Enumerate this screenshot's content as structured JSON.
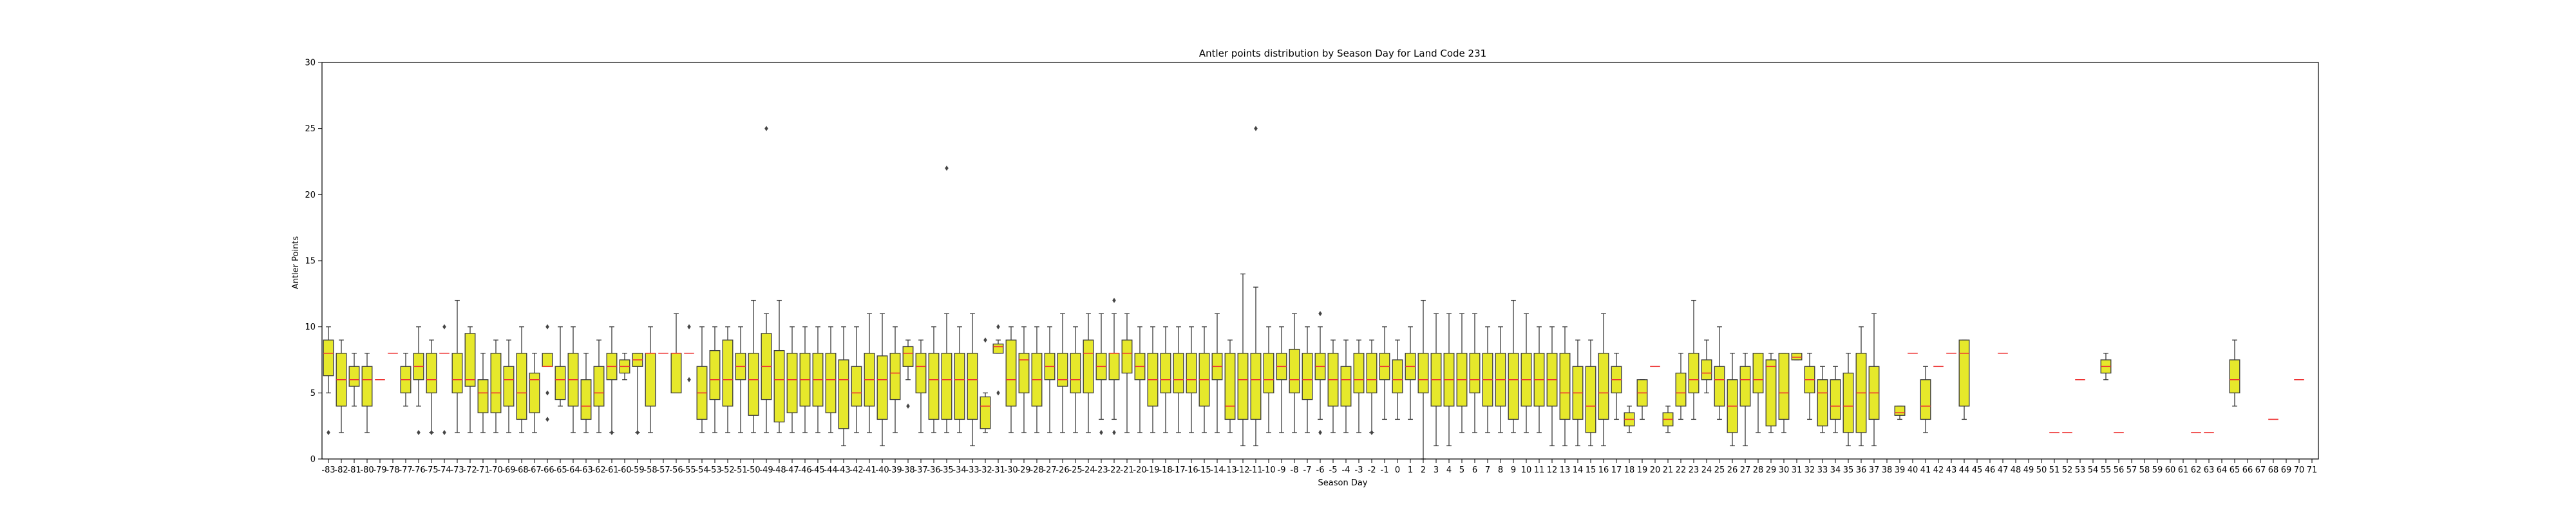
{
  "chart_data": {
    "type": "box",
    "title": "Antler points distribution by Season Day for Land Code 231",
    "xlabel": "Season Day",
    "ylabel": "Antler Points",
    "ylim": [
      0,
      30
    ],
    "yticks": [
      0,
      5,
      10,
      15,
      20,
      25,
      30
    ],
    "grid": false,
    "legend": "none",
    "colors": {
      "box_fill": "#e6e82b",
      "box_edge": "#3a3a3a",
      "median": "#ee3333",
      "whisker": "#3a3a3a",
      "outlier": "#444444"
    },
    "categories": [
      "-83",
      "-82",
      "-81",
      "-80",
      "-79",
      "-78",
      "-77",
      "-76",
      "-75",
      "-74",
      "-73",
      "-72",
      "-71",
      "-70",
      "-69",
      "-68",
      "-67",
      "-66",
      "-65",
      "-64",
      "-63",
      "-62",
      "-61",
      "-60",
      "-59",
      "-58",
      "-57",
      "-56",
      "-55",
      "-54",
      "-53",
      "-52",
      "-51",
      "-50",
      "-49",
      "-48",
      "-47",
      "-46",
      "-45",
      "-44",
      "-43",
      "-42",
      "-41",
      "-40",
      "-39",
      "-38",
      "-37",
      "-36",
      "-35",
      "-34",
      "-33",
      "-32",
      "-31",
      "-30",
      "-29",
      "-28",
      "-27",
      "-26",
      "-25",
      "-24",
      "-23",
      "-22",
      "-21",
      "-20",
      "-19",
      "-18",
      "-17",
      "-16",
      "-15",
      "-14",
      "-13",
      "-12",
      "-11",
      "-10",
      "-9",
      "-8",
      "-7",
      "-6",
      "-5",
      "-4",
      "-3",
      "-2",
      "-1",
      "0",
      "1",
      "2",
      "3",
      "4",
      "5",
      "6",
      "7",
      "8",
      "9",
      "10",
      "11",
      "12",
      "13",
      "14",
      "15",
      "16",
      "17",
      "18",
      "19",
      "20",
      "21",
      "22",
      "23",
      "24",
      "25",
      "26",
      "27",
      "28",
      "29",
      "30",
      "31",
      "32",
      "33",
      "34",
      "35",
      "36",
      "37",
      "38",
      "39",
      "40",
      "41",
      "42",
      "43",
      "44",
      "45",
      "46",
      "47",
      "48",
      "49",
      "50",
      "51",
      "52",
      "53",
      "54",
      "55",
      "56",
      "57",
      "58",
      "59",
      "60",
      "61",
      "62",
      "63",
      "64",
      "65",
      "66",
      "67",
      "68",
      "69",
      "70",
      "71"
    ],
    "boxes": [
      {
        "x": "-83",
        "wl": 5,
        "q1": 6.3,
        "med": 8,
        "q3": 9,
        "wh": 10,
        "out": [
          2
        ]
      },
      {
        "x": "-82",
        "wl": 2,
        "q1": 4,
        "med": 6,
        "q3": 8,
        "wh": 9
      },
      {
        "x": "-81",
        "wl": 4,
        "q1": 5.5,
        "med": 6,
        "q3": 7,
        "wh": 8
      },
      {
        "x": "-80",
        "wl": 2,
        "q1": 4,
        "med": 6,
        "q3": 7,
        "wh": 8
      },
      {
        "x": "-79",
        "med": 6
      },
      {
        "x": "-78",
        "med": 8
      },
      {
        "x": "-77",
        "wl": 4,
        "q1": 5,
        "med": 6,
        "q3": 7,
        "wh": 8
      },
      {
        "x": "-76",
        "wl": 4,
        "q1": 6,
        "med": 7,
        "q3": 8,
        "wh": 10,
        "out": [
          2
        ]
      },
      {
        "x": "-75",
        "wl": 2,
        "q1": 5,
        "med": 6,
        "q3": 8,
        "wh": 9,
        "out": [
          2
        ]
      },
      {
        "x": "-74",
        "med": 8,
        "out": [
          10,
          2
        ]
      },
      {
        "x": "-73",
        "wl": 2,
        "q1": 5,
        "med": 6,
        "q3": 8,
        "wh": 12
      },
      {
        "x": "-72",
        "wl": 2,
        "q1": 5.5,
        "med": 6,
        "q3": 9.5,
        "wh": 10
      },
      {
        "x": "-71",
        "wl": 2,
        "q1": 3.5,
        "med": 5,
        "q3": 6,
        "wh": 8
      },
      {
        "x": "-70",
        "wl": 2,
        "q1": 3.5,
        "med": 5,
        "q3": 8,
        "wh": 9
      },
      {
        "x": "-69",
        "wl": 2,
        "q1": 4,
        "med": 6,
        "q3": 7,
        "wh": 9
      },
      {
        "x": "-68",
        "wl": 2,
        "q1": 3,
        "med": 5,
        "q3": 8,
        "wh": 10
      },
      {
        "x": "-67",
        "wl": 2,
        "q1": 3.5,
        "med": 6,
        "q3": 6.5,
        "wh": 8
      },
      {
        "x": "-66",
        "wl": 7,
        "q1": 7,
        "med": 7,
        "q3": 8,
        "wh": 8,
        "out": [
          10,
          5,
          3
        ]
      },
      {
        "x": "-65",
        "wl": 4,
        "q1": 4.5,
        "med": 6,
        "q3": 7,
        "wh": 10
      },
      {
        "x": "-64",
        "wl": 2,
        "q1": 4,
        "med": 6,
        "q3": 8,
        "wh": 10
      },
      {
        "x": "-63",
        "wl": 2,
        "q1": 3,
        "med": 4,
        "q3": 6,
        "wh": 8
      },
      {
        "x": "-62",
        "wl": 2,
        "q1": 4,
        "med": 5,
        "q3": 7,
        "wh": 9
      },
      {
        "x": "-61",
        "wl": 2,
        "q1": 6,
        "med": 7,
        "q3": 8,
        "wh": 10,
        "out": [
          2
        ]
      },
      {
        "x": "-60",
        "wl": 6,
        "q1": 6.5,
        "med": 7,
        "q3": 7.5,
        "wh": 8
      },
      {
        "x": "-59",
        "wl": 2,
        "q1": 7,
        "med": 7.5,
        "q3": 8,
        "wh": 8,
        "out": [
          2
        ]
      },
      {
        "x": "-58",
        "wl": 2,
        "q1": 4,
        "med": 8,
        "q3": 8,
        "wh": 10
      },
      {
        "x": "-57",
        "med": 8
      },
      {
        "x": "-56",
        "wl": 5,
        "q1": 5,
        "med": 8,
        "q3": 8,
        "wh": 11
      },
      {
        "x": "-55",
        "med": 8,
        "out": [
          10,
          6
        ]
      },
      {
        "x": "-54",
        "wl": 2,
        "q1": 3,
        "med": 5,
        "q3": 7,
        "wh": 10
      },
      {
        "x": "-53",
        "wl": 2,
        "q1": 4.5,
        "med": 6,
        "q3": 8.2,
        "wh": 10
      },
      {
        "x": "-52",
        "wl": 2,
        "q1": 4,
        "med": 6,
        "q3": 9,
        "wh": 10
      },
      {
        "x": "-51",
        "wl": 2,
        "q1": 6,
        "med": 7,
        "q3": 8,
        "wh": 10
      },
      {
        "x": "-50",
        "wl": 2,
        "q1": 3.3,
        "med": 6,
        "q3": 8,
        "wh": 12
      },
      {
        "x": "-49",
        "wl": 2,
        "q1": 4.5,
        "med": 7,
        "q3": 9.5,
        "wh": 11,
        "out": [
          25
        ]
      },
      {
        "x": "-48",
        "wl": 2,
        "q1": 2.8,
        "med": 6,
        "q3": 8.2,
        "wh": 12
      },
      {
        "x": "-47",
        "wl": 2,
        "q1": 3.5,
        "med": 6,
        "q3": 8,
        "wh": 10
      },
      {
        "x": "-46",
        "wl": 2,
        "q1": 4,
        "med": 6,
        "q3": 8,
        "wh": 10
      },
      {
        "x": "-45",
        "wl": 2,
        "q1": 4,
        "med": 6,
        "q3": 8,
        "wh": 10
      },
      {
        "x": "-44",
        "wl": 2,
        "q1": 3.5,
        "med": 6,
        "q3": 8,
        "wh": 10
      },
      {
        "x": "-43",
        "wl": 1,
        "q1": 2.3,
        "med": 6,
        "q3": 7.5,
        "wh": 10
      },
      {
        "x": "-42",
        "wl": 2,
        "q1": 4,
        "med": 5,
        "q3": 7,
        "wh": 10
      },
      {
        "x": "-41",
        "wl": 2,
        "q1": 4,
        "med": 6,
        "q3": 8,
        "wh": 11
      },
      {
        "x": "-40",
        "wl": 1,
        "q1": 3,
        "med": 6,
        "q3": 7.8,
        "wh": 11
      },
      {
        "x": "-39",
        "wl": 2,
        "q1": 4.5,
        "med": 6.5,
        "q3": 8,
        "wh": 10
      },
      {
        "x": "-38",
        "wl": 6,
        "q1": 7,
        "med": 8,
        "q3": 8.5,
        "wh": 9,
        "out": [
          4
        ]
      },
      {
        "x": "-37",
        "wl": 2,
        "q1": 5,
        "med": 7,
        "q3": 8,
        "wh": 9
      },
      {
        "x": "-36",
        "wl": 2,
        "q1": 3,
        "med": 6,
        "q3": 8,
        "wh": 10
      },
      {
        "x": "-35",
        "wl": 2,
        "q1": 3,
        "med": 6,
        "q3": 8,
        "wh": 11,
        "out": [
          22
        ]
      },
      {
        "x": "-34",
        "wl": 2,
        "q1": 3,
        "med": 6,
        "q3": 8,
        "wh": 10
      },
      {
        "x": "-33",
        "wl": 1,
        "q1": 3,
        "med": 6,
        "q3": 8,
        "wh": 11
      },
      {
        "x": "-32",
        "wl": 2,
        "q1": 2.3,
        "med": 4,
        "q3": 4.7,
        "wh": 5,
        "out": [
          9
        ]
      },
      {
        "x": "-31",
        "wl": 8,
        "q1": 8,
        "med": 8.5,
        "q3": 8.7,
        "wh": 9,
        "out": [
          10,
          5
        ]
      },
      {
        "x": "-30",
        "wl": 2,
        "q1": 4,
        "med": 6,
        "q3": 9,
        "wh": 10
      },
      {
        "x": "-29",
        "wl": 2,
        "q1": 5,
        "med": 7.5,
        "q3": 8,
        "wh": 10
      },
      {
        "x": "-28",
        "wl": 2,
        "q1": 4,
        "med": 6,
        "q3": 8,
        "wh": 10
      },
      {
        "x": "-27",
        "wl": 2,
        "q1": 6,
        "med": 7,
        "q3": 8,
        "wh": 10
      },
      {
        "x": "-26",
        "wl": 2,
        "q1": 5.5,
        "med": 6,
        "q3": 8,
        "wh": 11
      },
      {
        "x": "-25",
        "wl": 2,
        "q1": 5,
        "med": 6,
        "q3": 8,
        "wh": 10
      },
      {
        "x": "-24",
        "wl": 2,
        "q1": 5,
        "med": 8,
        "q3": 9,
        "wh": 11
      },
      {
        "x": "-23",
        "wl": 3,
        "q1": 6,
        "med": 7,
        "q3": 8,
        "wh": 11,
        "out": [
          2
        ]
      },
      {
        "x": "-22",
        "wl": 3,
        "q1": 6,
        "med": 8,
        "q3": 8,
        "wh": 11,
        "out": [
          12,
          2
        ]
      },
      {
        "x": "-21",
        "wl": 2,
        "q1": 6.5,
        "med": 8,
        "q3": 9,
        "wh": 11
      },
      {
        "x": "-20",
        "wl": 2,
        "q1": 6,
        "med": 7,
        "q3": 8,
        "wh": 10
      },
      {
        "x": "-19",
        "wl": 2,
        "q1": 4,
        "med": 6,
        "q3": 8,
        "wh": 10
      },
      {
        "x": "-18",
        "wl": 2,
        "q1": 5,
        "med": 6,
        "q3": 8,
        "wh": 10
      },
      {
        "x": "-17",
        "wl": 2,
        "q1": 5,
        "med": 6,
        "q3": 8,
        "wh": 10
      },
      {
        "x": "-16",
        "wl": 2,
        "q1": 5,
        "med": 6,
        "q3": 8,
        "wh": 10
      },
      {
        "x": "-15",
        "wl": 2,
        "q1": 4,
        "med": 6,
        "q3": 8,
        "wh": 10
      },
      {
        "x": "-14",
        "wl": 2,
        "q1": 6,
        "med": 7,
        "q3": 8,
        "wh": 11
      },
      {
        "x": "-13",
        "wl": 2,
        "q1": 3,
        "med": 4,
        "q3": 8,
        "wh": 9
      },
      {
        "x": "-12",
        "wl": 1,
        "q1": 3,
        "med": 6,
        "q3": 8,
        "wh": 14
      },
      {
        "x": "-11",
        "wl": 1,
        "q1": 3,
        "med": 6,
        "q3": 8,
        "wh": 13,
        "out": [
          25
        ]
      },
      {
        "x": "-10",
        "wl": 2,
        "q1": 5,
        "med": 6,
        "q3": 8,
        "wh": 10
      },
      {
        "x": "-9",
        "wl": 2,
        "q1": 6,
        "med": 7,
        "q3": 8,
        "wh": 10
      },
      {
        "x": "-8",
        "wl": 2,
        "q1": 5,
        "med": 6,
        "q3": 8.3,
        "wh": 11
      },
      {
        "x": "-7",
        "wl": 2,
        "q1": 4.5,
        "med": 6,
        "q3": 8,
        "wh": 10
      },
      {
        "x": "-6",
        "wl": 3,
        "q1": 6,
        "med": 7,
        "q3": 8,
        "wh": 10,
        "out": [
          11,
          2
        ]
      },
      {
        "x": "-5",
        "wl": 2,
        "q1": 4,
        "med": 6,
        "q3": 8,
        "wh": 9
      },
      {
        "x": "-4",
        "wl": 2,
        "q1": 4,
        "med": 6,
        "q3": 7,
        "wh": 9
      },
      {
        "x": "-3",
        "wl": 2,
        "q1": 5,
        "med": 6,
        "q3": 8,
        "wh": 9
      },
      {
        "x": "-2",
        "wl": 2,
        "q1": 5,
        "med": 6,
        "q3": 8,
        "wh": 9,
        "out": [
          2
        ]
      },
      {
        "x": "-1",
        "wl": 3,
        "q1": 6,
        "med": 7,
        "q3": 8,
        "wh": 10
      },
      {
        "x": "0",
        "wl": 3,
        "q1": 5,
        "med": 6,
        "q3": 7.5,
        "wh": 9
      },
      {
        "x": "1",
        "wl": 3,
        "q1": 6,
        "med": 7,
        "q3": 8,
        "wh": 10
      },
      {
        "x": "2",
        "wl": 0,
        "q1": 5,
        "med": 6,
        "q3": 8,
        "wh": 12
      },
      {
        "x": "3",
        "wl": 1,
        "q1": 4,
        "med": 6,
        "q3": 8,
        "wh": 11
      },
      {
        "x": "4",
        "wl": 1,
        "q1": 4,
        "med": 6,
        "q3": 8,
        "wh": 11
      },
      {
        "x": "5",
        "wl": 2,
        "q1": 4,
        "med": 6,
        "q3": 8,
        "wh": 11
      },
      {
        "x": "6",
        "wl": 2,
        "q1": 5,
        "med": 6,
        "q3": 8,
        "wh": 11
      },
      {
        "x": "7",
        "wl": 2,
        "q1": 4,
        "med": 6,
        "q3": 8,
        "wh": 10
      },
      {
        "x": "8",
        "wl": 2,
        "q1": 4,
        "med": 6,
        "q3": 8,
        "wh": 10
      },
      {
        "x": "9",
        "wl": 2,
        "q1": 3,
        "med": 6,
        "q3": 8,
        "wh": 12
      },
      {
        "x": "10",
        "wl": 2,
        "q1": 4,
        "med": 6,
        "q3": 8,
        "wh": 11
      },
      {
        "x": "11",
        "wl": 2,
        "q1": 4,
        "med": 6,
        "q3": 8,
        "wh": 10
      },
      {
        "x": "12",
        "wl": 1,
        "q1": 4,
        "med": 6,
        "q3": 8,
        "wh": 10
      },
      {
        "x": "13",
        "wl": 1,
        "q1": 3,
        "med": 5,
        "q3": 8,
        "wh": 10
      },
      {
        "x": "14",
        "wl": 1,
        "q1": 3,
        "med": 5,
        "q3": 7,
        "wh": 9
      },
      {
        "x": "15",
        "wl": 1,
        "q1": 2,
        "med": 4,
        "q3": 7,
        "wh": 9
      },
      {
        "x": "16",
        "wl": 1,
        "q1": 3,
        "med": 5,
        "q3": 8,
        "wh": 11
      },
      {
        "x": "17",
        "wl": 3,
        "q1": 5,
        "med": 6,
        "q3": 7,
        "wh": 8
      },
      {
        "x": "18",
        "wl": 2,
        "q1": 2.5,
        "med": 3,
        "q3": 3.5,
        "wh": 4
      },
      {
        "x": "19",
        "wl": 3,
        "q1": 4,
        "med": 5,
        "q3": 6,
        "wh": 6
      },
      {
        "x": "20",
        "med": 7
      },
      {
        "x": "21",
        "wl": 2,
        "q1": 2.5,
        "med": 3,
        "q3": 3.5,
        "wh": 4
      },
      {
        "x": "22",
        "wl": 3,
        "q1": 4,
        "med": 5,
        "q3": 6.5,
        "wh": 8
      },
      {
        "x": "23",
        "wl": 3,
        "q1": 5,
        "med": 6,
        "q3": 8,
        "wh": 12
      },
      {
        "x": "24",
        "wl": 5,
        "q1": 6,
        "med": 6.5,
        "q3": 7.5,
        "wh": 9
      },
      {
        "x": "25",
        "wl": 3,
        "q1": 4,
        "med": 6,
        "q3": 7,
        "wh": 10
      },
      {
        "x": "26",
        "wl": 1,
        "q1": 2,
        "med": 4,
        "q3": 6,
        "wh": 8
      },
      {
        "x": "27",
        "wl": 1,
        "q1": 4,
        "med": 6,
        "q3": 7,
        "wh": 8
      },
      {
        "x": "28",
        "wl": 2,
        "q1": 5,
        "med": 6,
        "q3": 8,
        "wh": 8
      },
      {
        "x": "29",
        "wl": 2,
        "q1": 2.5,
        "med": 7,
        "q3": 7.5,
        "wh": 8
      },
      {
        "x": "30",
        "wl": 2,
        "q1": 3,
        "med": 5,
        "q3": 8,
        "wh": 8
      },
      {
        "x": "31",
        "wl": 7.5,
        "q1": 7.5,
        "med": 7.7,
        "q3": 8,
        "wh": 8
      },
      {
        "x": "32",
        "wl": 3,
        "q1": 5,
        "med": 6,
        "q3": 7,
        "wh": 8
      },
      {
        "x": "33",
        "wl": 2,
        "q1": 2.5,
        "med": 5,
        "q3": 6,
        "wh": 7
      },
      {
        "x": "34",
        "wl": 2,
        "q1": 3,
        "med": 4,
        "q3": 6,
        "wh": 7
      },
      {
        "x": "35",
        "wl": 1,
        "q1": 2,
        "med": 4,
        "q3": 6.5,
        "wh": 8
      },
      {
        "x": "36",
        "wl": 1,
        "q1": 2,
        "med": 5,
        "q3": 8,
        "wh": 10
      },
      {
        "x": "37",
        "wl": 1,
        "q1": 3,
        "med": 5,
        "q3": 7,
        "wh": 11
      },
      {
        "x": "39",
        "wl": 3,
        "q1": 3.3,
        "med": 3.5,
        "q3": 4,
        "wh": 4
      },
      {
        "x": "40",
        "med": 8
      },
      {
        "x": "41",
        "wl": 2,
        "q1": 3,
        "med": 4,
        "q3": 6,
        "wh": 7
      },
      {
        "x": "42",
        "med": 7
      },
      {
        "x": "43",
        "med": 8
      },
      {
        "x": "44",
        "wl": 3,
        "q1": 4,
        "med": 8,
        "q3": 9,
        "wh": 9
      },
      {
        "x": "47",
        "med": 8
      },
      {
        "x": "51",
        "med": 2
      },
      {
        "x": "52",
        "med": 2
      },
      {
        "x": "53",
        "med": 6
      },
      {
        "x": "55",
        "wl": 6,
        "q1": 6.5,
        "med": 7,
        "q3": 7.5,
        "wh": 8
      },
      {
        "x": "56",
        "med": 2
      },
      {
        "x": "62",
        "med": 2
      },
      {
        "x": "63",
        "med": 2
      },
      {
        "x": "65",
        "wl": 4,
        "q1": 5,
        "med": 6,
        "q3": 7.5,
        "wh": 9
      },
      {
        "x": "68",
        "med": 3
      },
      {
        "x": "70",
        "med": 6
      }
    ]
  }
}
